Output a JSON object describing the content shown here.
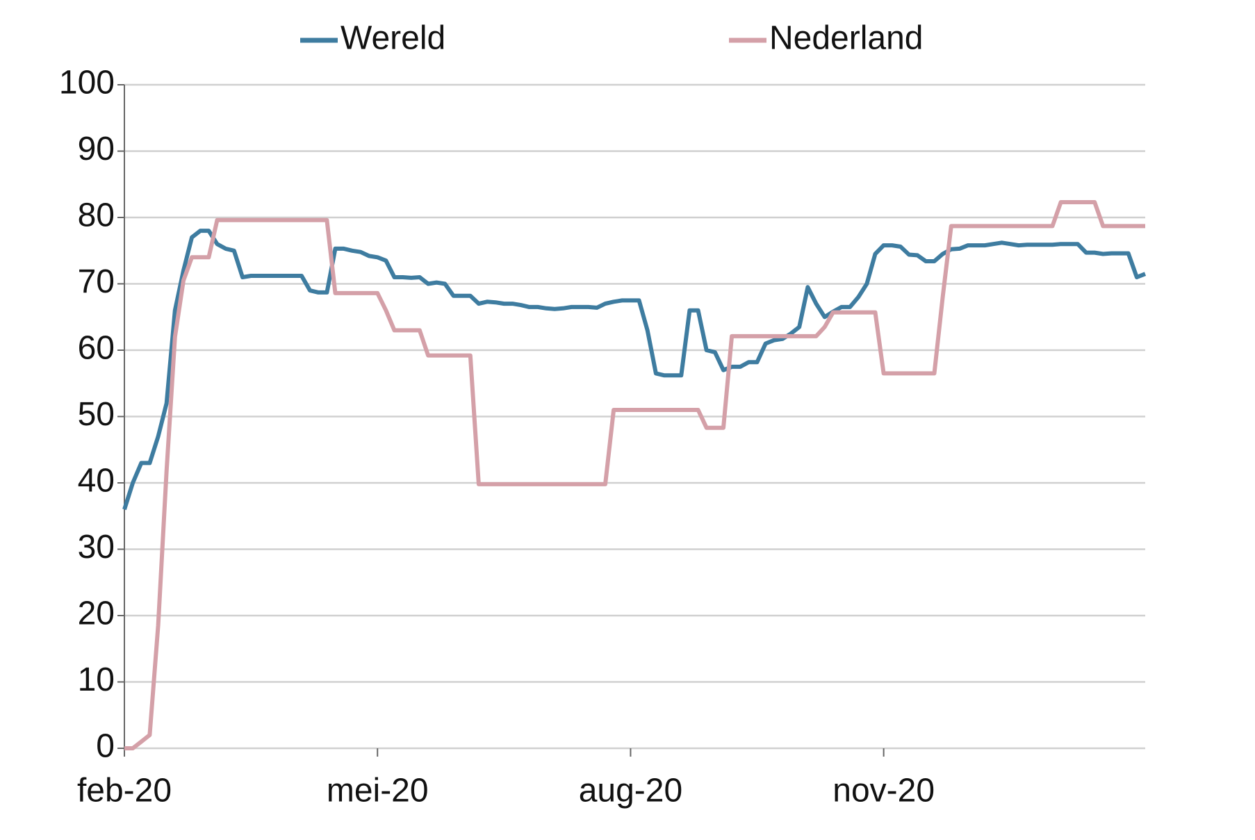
{
  "chart_data": {
    "type": "line",
    "categories": [
      "feb-20",
      null,
      null,
      null,
      null,
      null,
      null,
      null,
      null,
      null,
      null,
      null,
      null,
      null,
      null,
      null,
      null,
      null,
      null,
      null,
      null,
      null,
      null,
      null,
      null,
      null,
      null,
      null,
      null,
      null,
      "mei-20",
      null,
      null,
      null,
      null,
      null,
      null,
      null,
      null,
      null,
      null,
      null,
      null,
      null,
      null,
      null,
      null,
      null,
      null,
      null,
      null,
      null,
      null,
      null,
      null,
      null,
      null,
      null,
      null,
      null,
      "aug-20",
      null,
      null,
      null,
      null,
      null,
      null,
      null,
      null,
      null,
      null,
      null,
      null,
      null,
      null,
      null,
      null,
      null,
      null,
      null,
      null,
      null,
      null,
      null,
      null,
      null,
      null,
      null,
      null,
      null,
      "nov-20",
      null,
      null,
      null,
      null,
      null,
      null,
      null,
      null,
      null,
      null,
      null,
      null,
      null,
      null,
      null,
      null,
      null,
      null,
      null,
      null,
      null,
      null,
      null,
      null,
      null,
      null,
      null,
      null,
      null,
      null,
      null
    ],
    "series": [
      {
        "name": "Wereld",
        "color": "#3e7ca0",
        "values": [
          36,
          40,
          43,
          43,
          47,
          52,
          66,
          72,
          77,
          78,
          78,
          76,
          75.3,
          75,
          71,
          71.2,
          71.2,
          71.2,
          71.2,
          71.2,
          71.2,
          71.2,
          69,
          68.7,
          68.7,
          75.3,
          75.3,
          75,
          74.8,
          74.2,
          74,
          73.5,
          71,
          71,
          70.9,
          71,
          70,
          70.2,
          70,
          68.2,
          68.2,
          68.2,
          67,
          67.3,
          67.2,
          67,
          67,
          66.8,
          66.5,
          66.5,
          66.3,
          66.2,
          66.3,
          66.5,
          66.5,
          66.5,
          66.4,
          67,
          67.3,
          67.5,
          67.5,
          67.5,
          63,
          56.5,
          56.2,
          56.2,
          56.2,
          66,
          66,
          60,
          59.7,
          57,
          57.5,
          57.5,
          58.2,
          58.2,
          61,
          61.5,
          61.7,
          62.5,
          63.5,
          69.5,
          67,
          65,
          65.8,
          66.5,
          66.5,
          68,
          70,
          74.5,
          75.8,
          75.8,
          75.6,
          74.4,
          74.3,
          73.4,
          73.4,
          74.5,
          75.2,
          75.3,
          75.8,
          75.8,
          75.8,
          76,
          76.2,
          76,
          75.8,
          75.9,
          75.9,
          75.9,
          75.9,
          76,
          76,
          76,
          74.7,
          74.7,
          74.5,
          74.6,
          74.6,
          74.6,
          71,
          71.5
        ]
      },
      {
        "name": "Nederland",
        "color": "#d4a0a8",
        "values": [
          0,
          0,
          1,
          2,
          18.5,
          41.8,
          62,
          70.5,
          74,
          74,
          74,
          79.6,
          79.6,
          79.6,
          79.6,
          79.6,
          79.6,
          79.6,
          79.6,
          79.6,
          79.6,
          79.6,
          79.6,
          79.6,
          79.6,
          68.6,
          68.6,
          68.6,
          68.6,
          68.6,
          68.6,
          66,
          63,
          63,
          63,
          63,
          59.2,
          59.2,
          59.2,
          59.2,
          59.2,
          59.2,
          39.8,
          39.8,
          39.8,
          39.8,
          39.8,
          39.8,
          39.8,
          39.8,
          39.8,
          39.8,
          39.8,
          39.8,
          39.8,
          39.8,
          39.8,
          39.8,
          51,
          51,
          51,
          51,
          51,
          51,
          51,
          51,
          51,
          51,
          51,
          48.3,
          48.3,
          48.3,
          62.1,
          62.1,
          62.1,
          62.1,
          62.1,
          62.1,
          62.1,
          62.1,
          62.1,
          62.1,
          62.1,
          63.5,
          65.7,
          65.7,
          65.7,
          65.7,
          65.7,
          65.7,
          56.5,
          56.5,
          56.5,
          56.5,
          56.5,
          56.5,
          56.5,
          68,
          78.7,
          78.7,
          78.7,
          78.7,
          78.7,
          78.7,
          78.7,
          78.7,
          78.7,
          78.7,
          78.7,
          78.7,
          78.7,
          82.3,
          82.3,
          82.3,
          82.3,
          82.3,
          78.7,
          78.7,
          78.7,
          78.7,
          78.7,
          78.7
        ]
      }
    ],
    "ylim": [
      0,
      100
    ],
    "yticks": [
      0,
      10,
      20,
      30,
      40,
      50,
      60,
      70,
      80,
      90,
      100
    ],
    "grid": true,
    "legend": "top"
  }
}
